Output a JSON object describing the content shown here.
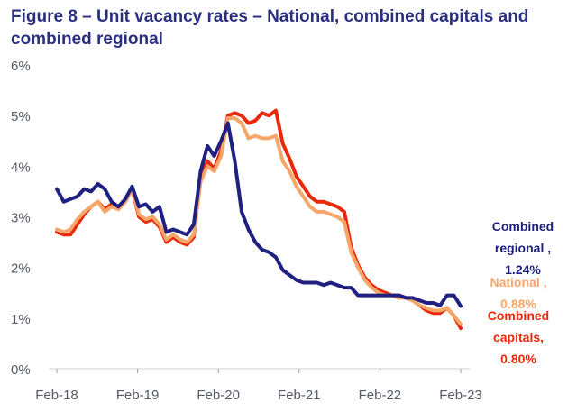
{
  "title": "Figure 8 – Unit vacancy rates – National, combined capitals and combined regional",
  "chart_data": {
    "type": "line",
    "title": "Figure 8 – Unit vacancy rates – National, combined capitals and combined regional",
    "xlabel": "",
    "ylabel": "",
    "ylim": [
      0,
      6
    ],
    "y_ticks": [
      "0%",
      "1%",
      "2%",
      "3%",
      "4%",
      "5%",
      "6%"
    ],
    "x_ticks": [
      "Feb-18",
      "Feb-19",
      "Feb-20",
      "Feb-21",
      "Feb-22",
      "Feb-23"
    ],
    "x_start": "Feb-18",
    "x_end": "Feb-23",
    "grid": false,
    "series": [
      {
        "name": "Combined capitals",
        "color": "#e8290b",
        "label_lines": [
          "Combined",
          "capitals,",
          "0.80%"
        ],
        "values": [
          2.7,
          2.65,
          2.65,
          2.85,
          3.05,
          3.2,
          3.3,
          3.15,
          3.25,
          3.15,
          3.3,
          3.55,
          3.0,
          2.9,
          2.95,
          2.8,
          2.5,
          2.6,
          2.5,
          2.45,
          2.6,
          3.8,
          4.1,
          3.95,
          4.3,
          5.0,
          5.05,
          5.0,
          4.85,
          4.9,
          5.05,
          5.0,
          5.1,
          4.45,
          4.15,
          3.8,
          3.6,
          3.4,
          3.3,
          3.3,
          3.25,
          3.2,
          3.1,
          2.4,
          2.05,
          1.8,
          1.65,
          1.55,
          1.5,
          1.45,
          1.45,
          1.4,
          1.35,
          1.25,
          1.15,
          1.1,
          1.1,
          1.2,
          1.05,
          0.8
        ]
      },
      {
        "name": "National",
        "color": "#f7a66a",
        "label_lines": [
          "National ,",
          "0.88%"
        ],
        "values": [
          2.75,
          2.7,
          2.75,
          2.95,
          3.1,
          3.2,
          3.3,
          3.1,
          3.2,
          3.15,
          3.3,
          3.55,
          3.05,
          2.95,
          3.0,
          2.85,
          2.55,
          2.65,
          2.55,
          2.5,
          2.65,
          3.7,
          4.0,
          3.9,
          4.2,
          4.95,
          4.95,
          4.85,
          4.55,
          4.6,
          4.55,
          4.55,
          4.6,
          4.1,
          3.9,
          3.6,
          3.4,
          3.2,
          3.1,
          3.1,
          3.05,
          3.0,
          2.9,
          2.3,
          2.0,
          1.75,
          1.6,
          1.5,
          1.45,
          1.45,
          1.4,
          1.4,
          1.35,
          1.25,
          1.2,
          1.15,
          1.15,
          1.2,
          1.05,
          0.88
        ]
      },
      {
        "name": "Combined regional",
        "color": "#1f2080",
        "label_lines": [
          "Combined",
          "regional ,",
          "1.24%"
        ],
        "values": [
          3.55,
          3.3,
          3.35,
          3.4,
          3.55,
          3.5,
          3.65,
          3.55,
          3.3,
          3.2,
          3.35,
          3.6,
          3.2,
          3.25,
          3.1,
          3.2,
          2.7,
          2.75,
          2.7,
          2.65,
          2.85,
          3.9,
          4.4,
          4.2,
          4.5,
          4.85,
          4.1,
          3.1,
          2.75,
          2.5,
          2.35,
          2.3,
          2.2,
          1.95,
          1.85,
          1.75,
          1.7,
          1.7,
          1.7,
          1.65,
          1.7,
          1.65,
          1.6,
          1.6,
          1.45,
          1.45,
          1.45,
          1.45,
          1.45,
          1.45,
          1.45,
          1.4,
          1.4,
          1.35,
          1.3,
          1.3,
          1.25,
          1.45,
          1.45,
          1.24
        ]
      }
    ]
  }
}
